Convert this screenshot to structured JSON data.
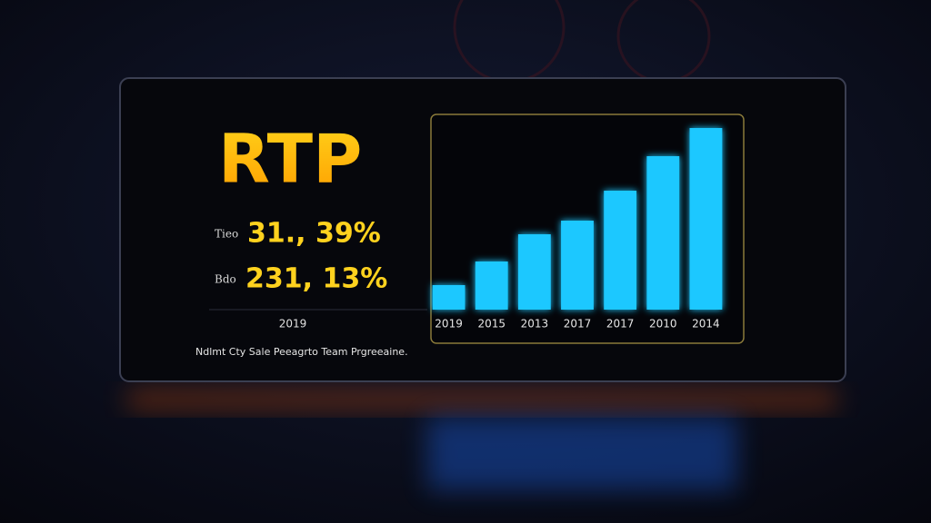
{
  "panel": {
    "title": "RTP",
    "stats": [
      {
        "label": "Tieo",
        "value": "31., 39%"
      },
      {
        "label": "Bdo",
        "value": "231, 13%"
      }
    ],
    "year": "2019",
    "caption": "Ndlmt Cty Sale Peeagrto Team Prgreeaine."
  },
  "chart_data": {
    "type": "bar",
    "categories": [
      "2019",
      "2015",
      "2013",
      "2017",
      "2017",
      "2010",
      "2014"
    ],
    "values": [
      27,
      53,
      83,
      98,
      131,
      169,
      200
    ],
    "color": "#1ec8ff",
    "ylim": [
      0,
      210
    ]
  }
}
